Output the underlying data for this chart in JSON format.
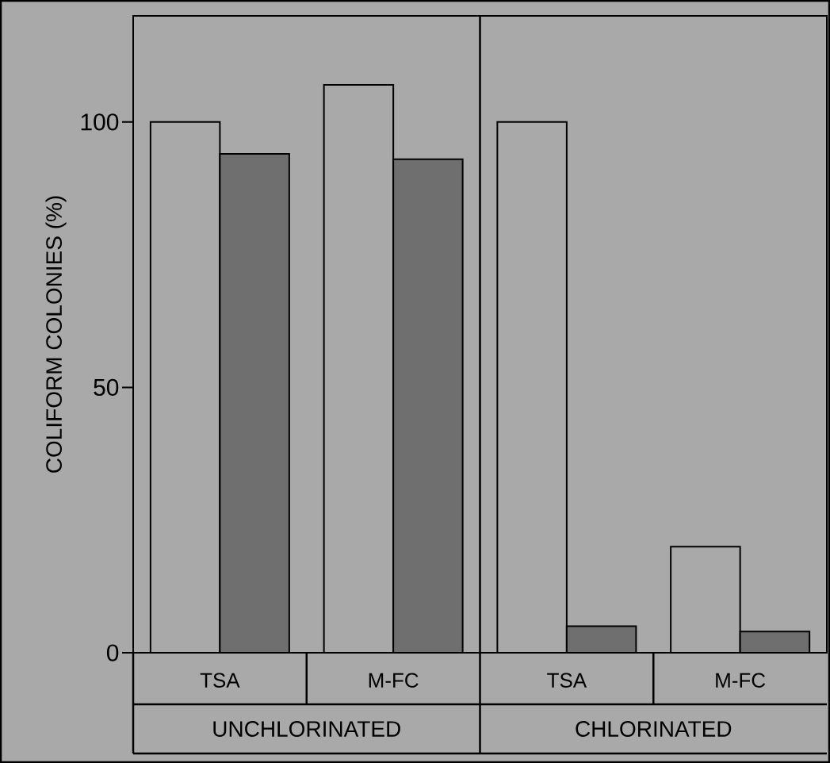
{
  "chart_data": {
    "type": "bar",
    "ylabel": "COLIFORM COLONIES (%)",
    "categories": [
      "TSA",
      "M-FC",
      "TSA",
      "M-FC"
    ],
    "series": [
      {
        "color": "#a9a9a9",
        "values": [
          100,
          107,
          100,
          20
        ]
      },
      {
        "color": "#6f6f6f",
        "values": [
          94,
          93,
          5,
          4
        ]
      }
    ],
    "ylim": [
      0,
      120
    ],
    "yticks": [
      0,
      50,
      100
    ],
    "grid": false,
    "annotations": [
      "UNCHLORINATED",
      "CHLORINATED"
    ]
  }
}
